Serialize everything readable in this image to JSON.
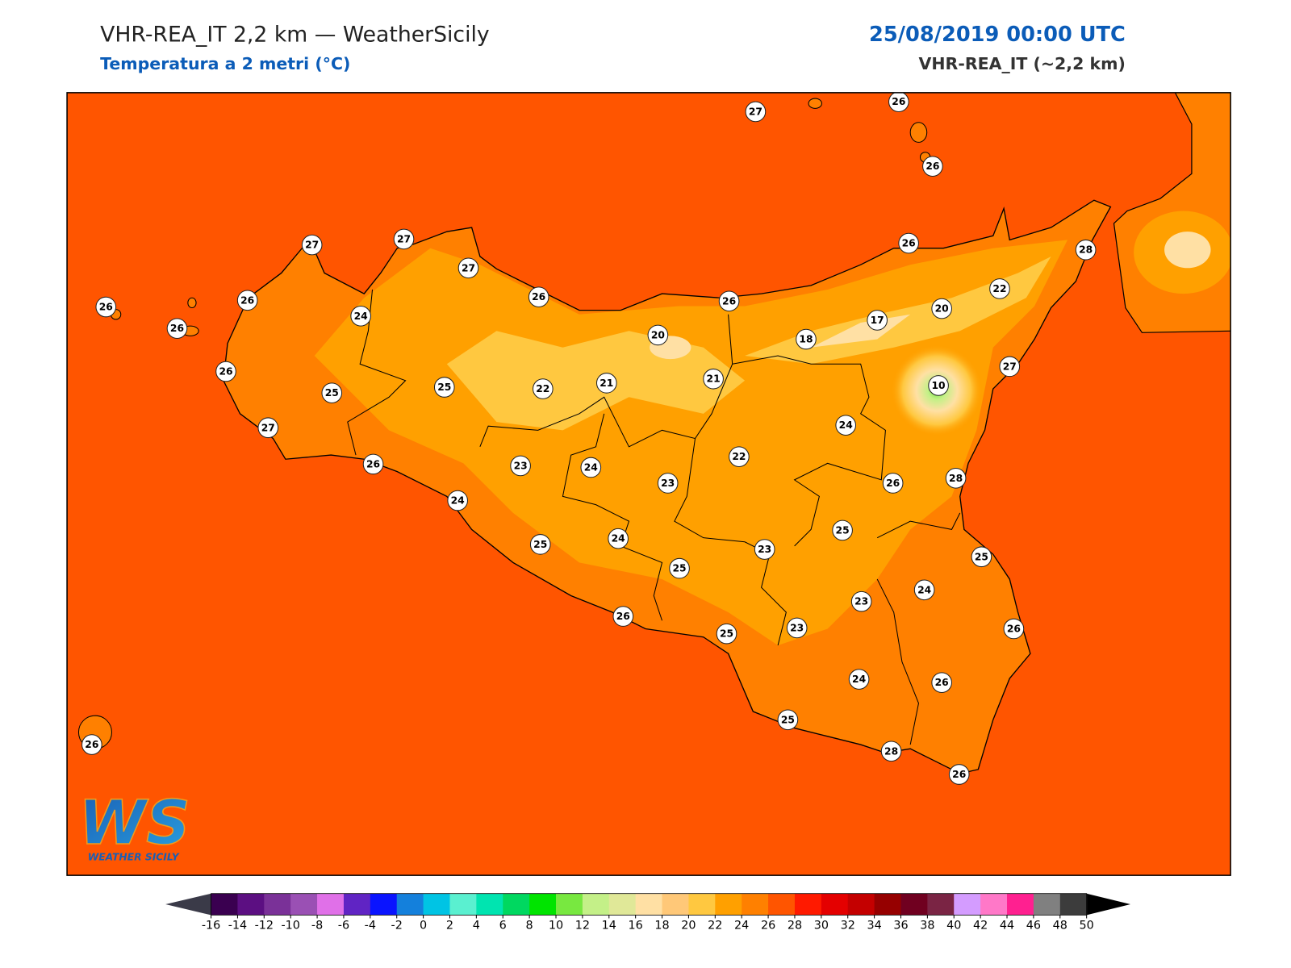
{
  "header": {
    "title": "VHR-REA_IT 2,2 km — WeatherSicily",
    "subtitle": "Temperatura a 2 metri (°C)",
    "datetime": "25/08/2019 00:00 UTC",
    "model": "VHR-REA_IT (~2,2 km)"
  },
  "stations": [
    27,
    26,
    26,
    27,
    27,
    27,
    26,
    26,
    26,
    24,
    26,
    25,
    27,
    26,
    25,
    22,
    21,
    20,
    21,
    26,
    18,
    17,
    26,
    20,
    22,
    28,
    27,
    10,
    24,
    22,
    26,
    23,
    24,
    23,
    26,
    28,
    24,
    25,
    25,
    24,
    23,
    25,
    25,
    24,
    23,
    26,
    25,
    23,
    26,
    24,
    26,
    25,
    28,
    26,
    26
  ],
  "colorbar": {
    "ticks": [
      -16,
      -14,
      -12,
      -10,
      -8,
      -6,
      -4,
      -2,
      0,
      2,
      4,
      6,
      8,
      10,
      12,
      14,
      16,
      18,
      20,
      22,
      24,
      26,
      28,
      30,
      32,
      34,
      36,
      38,
      40,
      42,
      44,
      46,
      48,
      50
    ],
    "colors": [
      "#3a0050",
      "#5c0f82",
      "#7a3198",
      "#9a50b4",
      "#e070e8",
      "#6024c4",
      "#0a14ff",
      "#1480dc",
      "#00c4e4",
      "#5af0d0",
      "#00e4b0",
      "#00d860",
      "#00e400",
      "#78e840",
      "#c4f088",
      "#e0e898",
      "#ffe0a4",
      "#ffc878",
      "#ffc840",
      "#ffa000",
      "#ff8000",
      "#ff5500",
      "#ff1a00",
      "#e40000",
      "#c40000",
      "#960000",
      "#700020",
      "#7a2444",
      "#d49cff",
      "#ff78c8",
      "#ff2090",
      "#808080",
      "#3c3c3c"
    ],
    "under_color": "#3a3a48",
    "over_color": "#000000"
  },
  "logo": {
    "mark": "WS",
    "name": "WEATHER SICILY"
  }
}
